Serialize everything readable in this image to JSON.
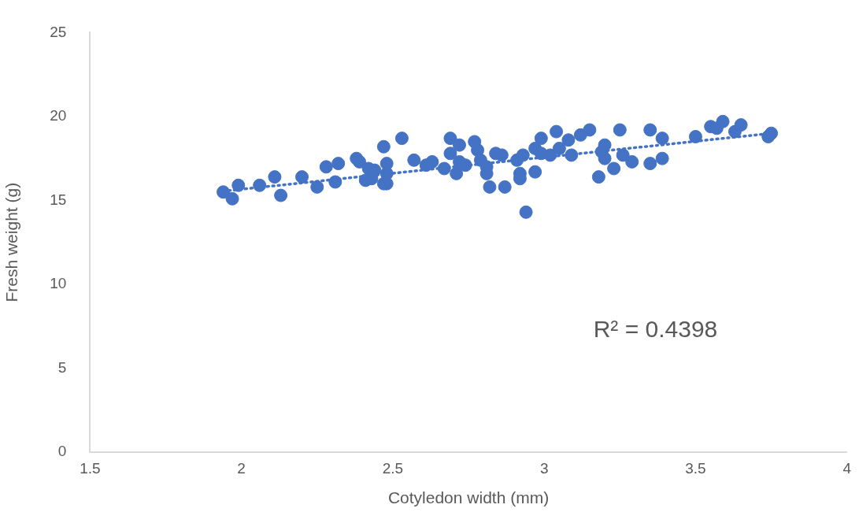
{
  "chart_data": {
    "type": "scatter",
    "xlabel": "Cotyledon width (mm)",
    "ylabel": "Fresh weight (g)",
    "xlim": [
      1.5,
      4
    ],
    "xticks": [
      1.5,
      2,
      2.5,
      3,
      3.5,
      4
    ],
    "ylim": [
      0,
      25
    ],
    "yticks": [
      0,
      5,
      10,
      15,
      20,
      25
    ],
    "grid": false,
    "legend": false,
    "annotations": [
      "R² = 0.4398"
    ],
    "series": [
      {
        "color": "#4472c4",
        "marker": "circle",
        "x": [
          1.94,
          1.97,
          1.99,
          2.06,
          2.11,
          2.13,
          2.2,
          2.25,
          2.28,
          2.31,
          2.32,
          2.38,
          2.39,
          2.41,
          2.43,
          2.42,
          2.44,
          2.47,
          2.48,
          2.48,
          2.48,
          2.47,
          2.53,
          2.57,
          2.61,
          2.63,
          2.67,
          2.69,
          2.69,
          2.71,
          2.72,
          2.72,
          2.74,
          2.77,
          2.78,
          2.79,
          2.81,
          2.81,
          2.82,
          2.84,
          2.86,
          2.87,
          2.91,
          2.92,
          2.92,
          2.93,
          2.94,
          2.97,
          2.97,
          2.99,
          2.99,
          3.02,
          3.04,
          3.05,
          3.08,
          3.09,
          3.12,
          3.15,
          3.18,
          3.19,
          3.2,
          3.2,
          3.23,
          3.25,
          3.26,
          3.29,
          3.35,
          3.35,
          3.39,
          3.39,
          3.5,
          3.55,
          3.57,
          3.59,
          3.63,
          3.65,
          3.74,
          3.75
        ],
        "values": [
          15.5,
          15.1,
          15.9,
          15.9,
          16.4,
          15.3,
          16.4,
          15.8,
          17.0,
          16.1,
          17.2,
          17.5,
          17.3,
          16.2,
          16.3,
          16.9,
          16.8,
          18.2,
          17.2,
          16.6,
          16.0,
          16.0,
          18.7,
          17.4,
          17.1,
          17.3,
          16.9,
          18.7,
          17.8,
          16.6,
          18.3,
          17.3,
          17.1,
          18.5,
          18.0,
          17.4,
          17.0,
          16.6,
          15.8,
          17.8,
          17.7,
          15.8,
          17.4,
          16.6,
          16.3,
          17.7,
          14.3,
          18.1,
          16.7,
          18.7,
          17.8,
          17.7,
          19.1,
          18.1,
          18.6,
          17.7,
          18.9,
          19.2,
          16.4,
          17.9,
          18.3,
          17.5,
          16.9,
          19.2,
          17.7,
          17.3,
          19.2,
          17.2,
          17.5,
          18.7,
          18.8,
          19.4,
          19.3,
          19.7,
          19.1,
          19.5,
          18.8,
          19.0
        ]
      },
      {
        "type": "line",
        "color": "#4472c4",
        "line_style": "dotted",
        "marker": "none",
        "x": [
          1.94,
          3.75
        ],
        "values": [
          15.55,
          19.0
        ]
      }
    ]
  }
}
